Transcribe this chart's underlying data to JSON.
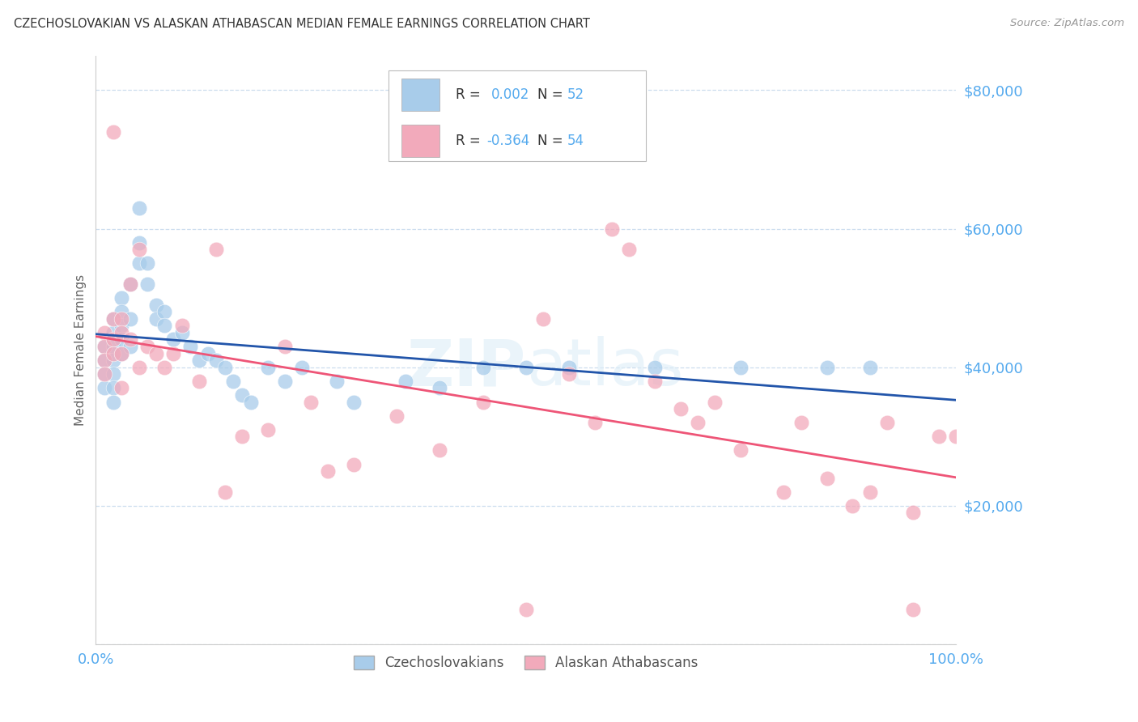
{
  "title": "CZECHOSLOVAKIAN VS ALASKAN ATHABASCAN MEDIAN FEMALE EARNINGS CORRELATION CHART",
  "source": "Source: ZipAtlas.com",
  "ylabel": "Median Female Earnings",
  "y_ticks": [
    0,
    20000,
    40000,
    60000,
    80000
  ],
  "y_tick_labels": [
    "",
    "$20,000",
    "$40,000",
    "$60,000",
    "$80,000"
  ],
  "blue_color": "#A8CCEA",
  "pink_color": "#F2AABB",
  "blue_line_color": "#2255AA",
  "pink_line_color": "#EE5577",
  "axis_color": "#55AAEE",
  "grid_color": "#CCDDEE",
  "watermark": "ZIPatlas",
  "blue_x": [
    1,
    1,
    1,
    1,
    2,
    2,
    2,
    2,
    2,
    2,
    2,
    3,
    3,
    3,
    3,
    3,
    4,
    4,
    4,
    5,
    5,
    5,
    6,
    6,
    7,
    7,
    8,
    8,
    9,
    10,
    11,
    12,
    13,
    14,
    15,
    16,
    17,
    18,
    20,
    22,
    24,
    28,
    30,
    36,
    40,
    45,
    50,
    55,
    65,
    75,
    85,
    90
  ],
  "blue_y": [
    43000,
    41000,
    39000,
    37000,
    47000,
    45000,
    43000,
    41000,
    39000,
    37000,
    35000,
    50000,
    48000,
    46000,
    44000,
    42000,
    52000,
    47000,
    43000,
    63000,
    58000,
    55000,
    55000,
    52000,
    49000,
    47000,
    48000,
    46000,
    44000,
    45000,
    43000,
    41000,
    42000,
    41000,
    40000,
    38000,
    36000,
    35000,
    40000,
    38000,
    40000,
    38000,
    35000,
    38000,
    37000,
    40000,
    40000,
    40000,
    40000,
    40000,
    40000,
    40000
  ],
  "pink_x": [
    1,
    1,
    1,
    1,
    2,
    2,
    2,
    2,
    3,
    3,
    3,
    3,
    4,
    4,
    5,
    5,
    6,
    7,
    8,
    9,
    10,
    12,
    14,
    15,
    17,
    20,
    22,
    25,
    27,
    30,
    35,
    40,
    45,
    50,
    52,
    55,
    58,
    60,
    62,
    65,
    68,
    70,
    72,
    75,
    80,
    82,
    85,
    88,
    90,
    92,
    95,
    95,
    98,
    100
  ],
  "pink_y": [
    45000,
    43000,
    41000,
    39000,
    74000,
    47000,
    44000,
    42000,
    47000,
    45000,
    42000,
    37000,
    52000,
    44000,
    57000,
    40000,
    43000,
    42000,
    40000,
    42000,
    46000,
    38000,
    57000,
    22000,
    30000,
    31000,
    43000,
    35000,
    25000,
    26000,
    33000,
    28000,
    35000,
    5000,
    47000,
    39000,
    32000,
    60000,
    57000,
    38000,
    34000,
    32000,
    35000,
    28000,
    22000,
    32000,
    24000,
    20000,
    22000,
    32000,
    19000,
    5000,
    30000,
    30000
  ]
}
